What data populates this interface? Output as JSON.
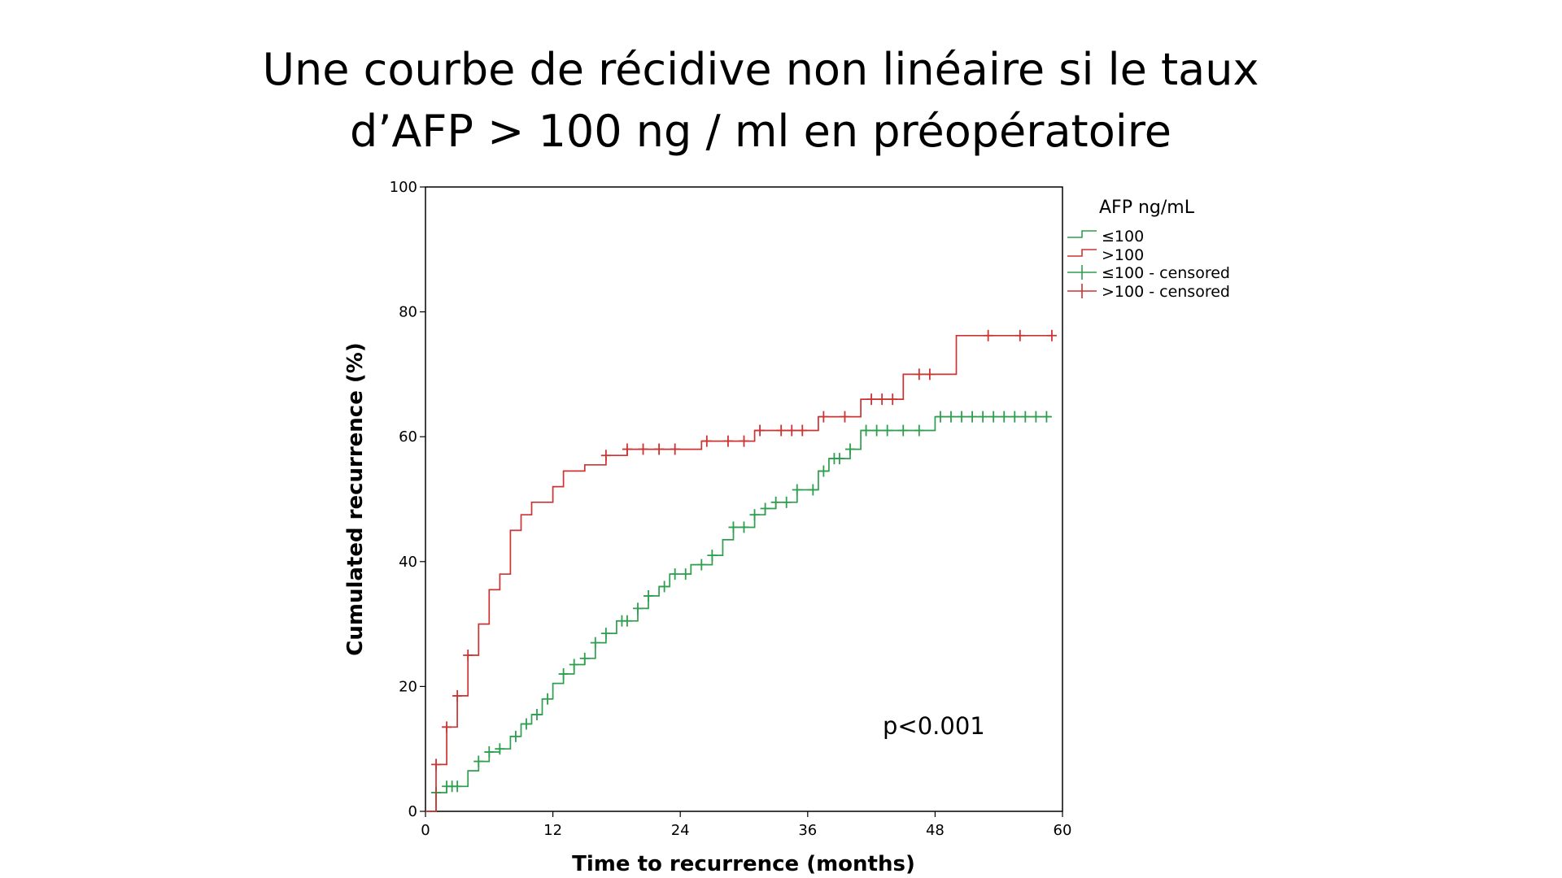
{
  "slide": {
    "title_line1": "Une courbe de récidive non linéaire si le taux",
    "title_line2": "d’AFP > 100 ng / ml en préopératoire"
  },
  "chart_data": {
    "type": "line",
    "step": true,
    "xlabel": "Time to recurrence (months)",
    "ylabel": "Cumulated recurrence (%)",
    "xlim": [
      0,
      60
    ],
    "ylim": [
      0,
      100
    ],
    "xticks": [
      "0",
      "12",
      "24",
      "36",
      "48",
      "60"
    ],
    "yticks": [
      "0",
      "20",
      "40",
      "60",
      "80",
      "100"
    ],
    "grid": false,
    "legend": {
      "title": "AFP ng/mL",
      "position": "right",
      "entries": [
        "≤100",
        ">100",
        "≤100 - censored",
        ">100 - censored"
      ]
    },
    "annotation": "p<0.001",
    "series": [
      {
        "name": "≤100",
        "color": "#2e9e4f",
        "points": [
          [
            0,
            0
          ],
          [
            1,
            0
          ],
          [
            1,
            3
          ],
          [
            2,
            3
          ],
          [
            2,
            4
          ],
          [
            4,
            4
          ],
          [
            4,
            6.5
          ],
          [
            5,
            6.5
          ],
          [
            5,
            8
          ],
          [
            6,
            8
          ],
          [
            6,
            9.5
          ],
          [
            7,
            9.5
          ],
          [
            7,
            10
          ],
          [
            8,
            10
          ],
          [
            8,
            12
          ],
          [
            9,
            12
          ],
          [
            9,
            14
          ],
          [
            10,
            14
          ],
          [
            10,
            15.5
          ],
          [
            11,
            15.5
          ],
          [
            11,
            18
          ],
          [
            12,
            18
          ],
          [
            12,
            20.5
          ],
          [
            13,
            20.5
          ],
          [
            13,
            22
          ],
          [
            14,
            22
          ],
          [
            14,
            23.5
          ],
          [
            15,
            23.5
          ],
          [
            15,
            24.5
          ],
          [
            16,
            24.5
          ],
          [
            16,
            27
          ],
          [
            17,
            27
          ],
          [
            17,
            28.5
          ],
          [
            18,
            28.5
          ],
          [
            18,
            30.5
          ],
          [
            20,
            30.5
          ],
          [
            20,
            32.5
          ],
          [
            21,
            32.5
          ],
          [
            21,
            34.5
          ],
          [
            22,
            34.5
          ],
          [
            22,
            36
          ],
          [
            23,
            36
          ],
          [
            23,
            38
          ],
          [
            25,
            38
          ],
          [
            25,
            39.5
          ],
          [
            27,
            39.5
          ],
          [
            27,
            41
          ],
          [
            28,
            41
          ],
          [
            28,
            43.5
          ],
          [
            29,
            43.5
          ],
          [
            29,
            45.5
          ],
          [
            31,
            45.5
          ],
          [
            31,
            47.5
          ],
          [
            32,
            47.5
          ],
          [
            32,
            48.5
          ],
          [
            33,
            48.5
          ],
          [
            33,
            49.5
          ],
          [
            35,
            49.5
          ],
          [
            35,
            51.5
          ],
          [
            37,
            51.5
          ],
          [
            37,
            54.5
          ],
          [
            38,
            54.5
          ],
          [
            38,
            56.5
          ],
          [
            40,
            56.5
          ],
          [
            40,
            58
          ],
          [
            41,
            58
          ],
          [
            41,
            61
          ],
          [
            48,
            61
          ],
          [
            48,
            63.2
          ],
          [
            59,
            63.2
          ]
        ],
        "censored_x": [
          1,
          2,
          2.5,
          3,
          5,
          6,
          7,
          8.5,
          9.5,
          10.5,
          11.5,
          13,
          14,
          15,
          16,
          17,
          18.5,
          19,
          20,
          21,
          22.5,
          23.5,
          24.5,
          26,
          27,
          29,
          30,
          31,
          32,
          33,
          34,
          35,
          36.5,
          37.5,
          38.5,
          39,
          40,
          41.5,
          42.5,
          43.5,
          45,
          46.5,
          48.5,
          49.5,
          50.5,
          51.5,
          52.5,
          53.5,
          54.5,
          55.5,
          56.5,
          57.5,
          58.5
        ]
      },
      {
        "name": ">100",
        "color": "#cc3333",
        "points": [
          [
            0,
            0
          ],
          [
            1,
            0
          ],
          [
            1,
            7.5
          ],
          [
            2,
            7.5
          ],
          [
            2,
            13.5
          ],
          [
            3,
            13.5
          ],
          [
            3,
            18.5
          ],
          [
            4,
            18.5
          ],
          [
            4,
            25
          ],
          [
            5,
            25
          ],
          [
            5,
            30
          ],
          [
            6,
            30
          ],
          [
            6,
            35.5
          ],
          [
            7,
            35.5
          ],
          [
            7,
            38
          ],
          [
            8,
            38
          ],
          [
            8,
            45
          ],
          [
            9,
            45
          ],
          [
            9,
            47.5
          ],
          [
            10,
            47.5
          ],
          [
            10,
            49.5
          ],
          [
            12,
            49.5
          ],
          [
            12,
            52
          ],
          [
            13,
            52
          ],
          [
            13,
            54.5
          ],
          [
            15,
            54.5
          ],
          [
            15,
            55.5
          ],
          [
            17,
            55.5
          ],
          [
            17,
            57
          ],
          [
            19,
            57
          ],
          [
            19,
            58
          ],
          [
            26,
            58
          ],
          [
            26,
            59.3
          ],
          [
            31,
            59.3
          ],
          [
            31,
            61
          ],
          [
            37,
            61
          ],
          [
            37,
            63.2
          ],
          [
            41,
            63.2
          ],
          [
            41,
            66
          ],
          [
            45,
            66
          ],
          [
            45,
            70
          ],
          [
            50,
            70
          ],
          [
            50,
            76.2
          ],
          [
            59,
            76.2
          ]
        ],
        "censored_x": [
          1,
          2,
          3,
          4,
          17,
          19,
          20.5,
          22,
          23.5,
          26.5,
          28.5,
          30,
          31.5,
          33.5,
          34.5,
          35.5,
          37.5,
          39.5,
          42,
          43,
          44,
          46.5,
          47.5,
          53,
          56,
          59
        ]
      }
    ]
  }
}
